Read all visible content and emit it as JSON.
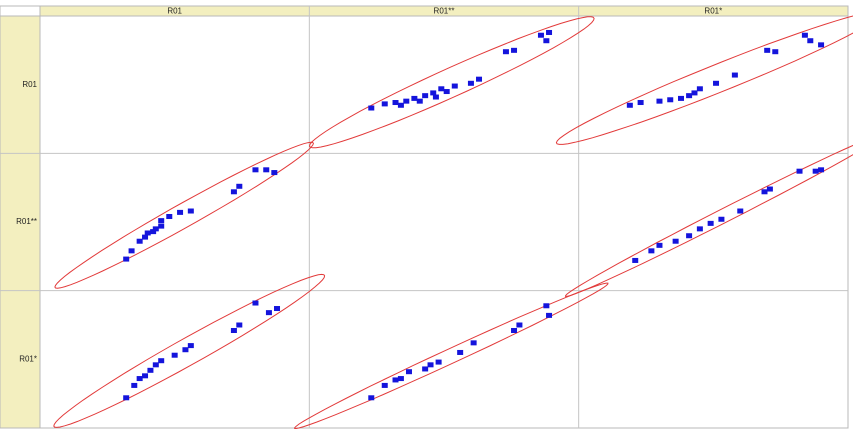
{
  "chart_data": {
    "type": "scatter_matrix",
    "variables": [
      "R01",
      "R01**",
      "R01*"
    ],
    "xlim": [
      0,
      100
    ],
    "ylim": [
      0,
      100
    ],
    "color": "#1414dc",
    "ellipse_color": "#e23a3a",
    "cells": [
      [
        null,
        {
          "x": [
            23,
            28,
            32,
            36,
            39,
            43,
            46,
            49,
            51,
            54,
            60,
            63,
            73,
            76,
            86,
            88,
            89,
            34,
            41,
            47
          ],
          "y": [
            33,
            36,
            37,
            38,
            40,
            42,
            44,
            47,
            45,
            49,
            51,
            54,
            74,
            75,
            86,
            82,
            88,
            35,
            38,
            41
          ]
        },
        {
          "x": [
            19,
            23,
            30,
            38,
            43,
            45,
            51,
            58,
            70,
            73,
            84,
            86,
            90,
            34,
            41
          ],
          "y": [
            35,
            37,
            38,
            40,
            44,
            47,
            51,
            57,
            75,
            74,
            86,
            82,
            79,
            39,
            42
          ]
        }
      ],
      [
        {
          "x": [
            32,
            34,
            37,
            40,
            43,
            45,
            48,
            52,
            56,
            72,
            74,
            80,
            84,
            87,
            39,
            42,
            45
          ],
          "y": [
            23,
            29,
            36,
            42,
            45,
            51,
            54,
            57,
            58,
            72,
            76,
            88,
            88,
            86,
            39,
            43,
            47
          ]
        },
        null,
        {
          "x": [
            21,
            30,
            36,
            41,
            45,
            53,
            60,
            69,
            71,
            82,
            88,
            90,
            27,
            49
          ],
          "y": [
            22,
            33,
            36,
            40,
            45,
            52,
            58,
            72,
            74,
            87,
            87,
            88,
            29,
            49
          ]
        }
      ],
      [
        {
          "x": [
            32,
            35,
            39,
            41,
            45,
            50,
            54,
            56,
            72,
            74,
            80,
            85,
            88,
            37,
            43
          ],
          "y": [
            22,
            31,
            38,
            42,
            49,
            53,
            57,
            60,
            71,
            75,
            91,
            84,
            87,
            36,
            46
          ]
        },
        {
          "x": [
            23,
            28,
            34,
            37,
            43,
            48,
            56,
            61,
            76,
            78,
            88,
            89,
            32,
            45
          ],
          "y": [
            22,
            31,
            36,
            41,
            43,
            48,
            55,
            62,
            71,
            75,
            89,
            82,
            35,
            46
          ]
        },
        null
      ]
    ]
  }
}
